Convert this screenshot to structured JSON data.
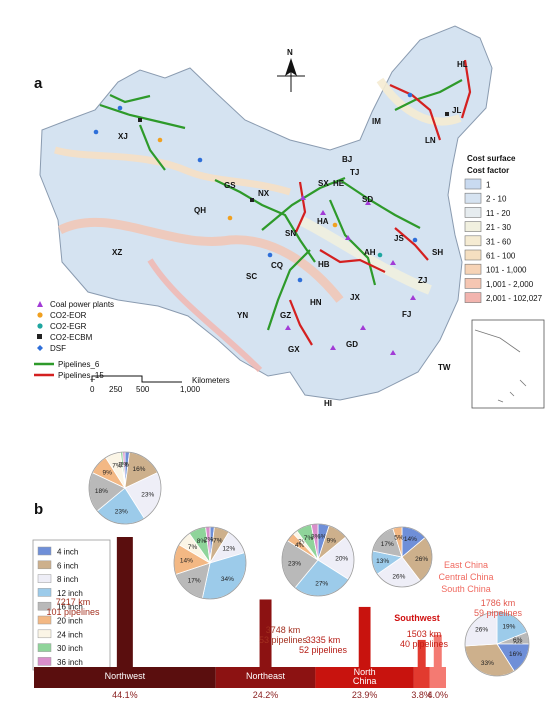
{
  "map_panel": {
    "panel_label": "a",
    "north_label": "N",
    "provinces": [
      "HL",
      "JL",
      "LN",
      "IM",
      "XJ",
      "GS",
      "QH",
      "XZ",
      "NX",
      "SX",
      "HE",
      "BJ",
      "TJ",
      "SD",
      "HA",
      "SN",
      "SC",
      "CQ",
      "HB",
      "AH",
      "JS",
      "SH",
      "ZJ",
      "HN",
      "JX",
      "FJ",
      "YN",
      "GZ",
      "GX",
      "GD",
      "TW",
      "HI"
    ],
    "point_legend": [
      {
        "label": "Coal power plants",
        "symbol": "triangle",
        "color": "#a23bd6"
      },
      {
        "label": "CO2-EOR",
        "symbol": "circle",
        "color": "#f0a020"
      },
      {
        "label": "CO2-EGR",
        "symbol": "circle",
        "color": "#1fa6a0"
      },
      {
        "label": "CO2-ECBM",
        "symbol": "square",
        "color": "#222222"
      },
      {
        "label": "DSF",
        "symbol": "diamond",
        "color": "#2e6fd9"
      }
    ],
    "line_legend": [
      {
        "label": "Pipelines_6",
        "color": "#2e9a2a"
      },
      {
        "label": "Pipelines_15",
        "color": "#d42020"
      }
    ],
    "scale": {
      "ticks": [
        "0",
        "250",
        "500",
        "1,000"
      ],
      "unit": "Kilometers"
    },
    "cost_legend": {
      "title1": "Cost surface",
      "title2": "Cost factor",
      "classes": [
        {
          "label": "1",
          "color": "#c9daf0"
        },
        {
          "label": "2 - 10",
          "color": "#d6e3f1"
        },
        {
          "label": "11 - 20",
          "color": "#e6ecef"
        },
        {
          "label": "21 - 30",
          "color": "#f1f0df"
        },
        {
          "label": "31 - 60",
          "color": "#f5ebd2"
        },
        {
          "label": "61 - 100",
          "color": "#f5dfc0"
        },
        {
          "label": "101 - 1,000",
          "color": "#f6d3b6"
        },
        {
          "label": "1,001 - 2,000",
          "color": "#f5c6b2"
        },
        {
          "label": "2,001 - 102,027",
          "color": "#f2b4ae"
        }
      ]
    }
  },
  "chart_panel": {
    "panel_label": "b",
    "size_legend": [
      {
        "label": "4 inch",
        "color": "#6f8fd8"
      },
      {
        "label": "6 inch",
        "color": "#cdb08c"
      },
      {
        "label": "8 inch",
        "color": "#eeeef7"
      },
      {
        "label": "12 inch",
        "color": "#9ccbea"
      },
      {
        "label": "16 inch",
        "color": "#b9b9b9"
      },
      {
        "label": "20 inch",
        "color": "#f3b884"
      },
      {
        "label": "24 inch",
        "color": "#fbf5e6"
      },
      {
        "label": "30 inch",
        "color": "#8fd49a"
      },
      {
        "label": "36 inch",
        "color": "#d98ecb"
      }
    ]
  },
  "chart_data": {
    "type": "bar",
    "title": "",
    "categories": [
      "Northwest",
      "Northeast",
      "North China",
      "Southwest",
      "East China / Central China / South China"
    ],
    "region_labels": [
      "Northwest",
      "Northeast",
      "North\nChina",
      "",
      ""
    ],
    "annotations": [
      {
        "length": "7217 km",
        "pipelines": "101 pipelines"
      },
      {
        "length": "3748 km",
        "pipelines": "53 pipelines"
      },
      {
        "length": "3335 km",
        "pipelines": "52 pipelines"
      },
      {
        "length": "1503 km",
        "pipelines": "40 pipelines",
        "region": "Southwest"
      },
      {
        "length": "1786 km",
        "pipelines": "59 pipelines",
        "region_lines": [
          "East China",
          "Central China",
          "South China"
        ]
      }
    ],
    "length_km": [
      7217,
      3748,
      3335,
      1503,
      1786
    ],
    "pipelines": [
      101,
      53,
      52,
      40,
      59
    ],
    "share_percent": [
      44.1,
      24.2,
      23.9,
      3.8,
      4.0
    ],
    "share_labels": [
      "44.1%",
      "24.2%",
      "23.9%",
      "3.8%",
      "4.0%"
    ],
    "bar_colors": [
      "#5a0e0e",
      "#8c1212",
      "#c8130e",
      "#e23a2f",
      "#f47a72"
    ],
    "pie_charts": [
      {
        "region": "Northwest",
        "slices": [
          {
            "size": "4 inch",
            "label": "2%",
            "value": 2
          },
          {
            "size": "6 inch",
            "label": "16%",
            "value": 16
          },
          {
            "size": "8 inch",
            "label": "23%",
            "value": 23
          },
          {
            "size": "12 inch",
            "label": "23%",
            "value": 23
          },
          {
            "size": "16 inch",
            "label": "18%",
            "value": 18
          },
          {
            "size": "20 inch",
            "label": "9%",
            "value": 9
          },
          {
            "size": "24 inch",
            "label": "7%",
            "value": 7
          },
          {
            "size": "30 inch",
            "label": "1%",
            "value": 1
          },
          {
            "size": "36 inch",
            "label": "1%",
            "value": 1
          }
        ]
      },
      {
        "region": "Northeast",
        "slices": [
          {
            "size": "4 inch",
            "label": "2%",
            "value": 2
          },
          {
            "size": "6 inch",
            "label": "7%",
            "value": 7
          },
          {
            "size": "8 inch",
            "label": "12%",
            "value": 12
          },
          {
            "size": "12 inch",
            "label": "34%",
            "value": 34
          },
          {
            "size": "16 inch",
            "label": "17%",
            "value": 17
          },
          {
            "size": "20 inch",
            "label": "14%",
            "value": 14
          },
          {
            "size": "24 inch",
            "label": "7%",
            "value": 7
          },
          {
            "size": "30 inch",
            "label": "8%",
            "value": 8
          },
          {
            "size": "36 inch",
            "label": "2%",
            "value": 2
          }
        ]
      },
      {
        "region": "North China",
        "slices": [
          {
            "size": "4 inch",
            "label": "5%",
            "value": 5
          },
          {
            "size": "6 inch",
            "label": "9%",
            "value": 9
          },
          {
            "size": "8 inch",
            "label": "20%",
            "value": 20
          },
          {
            "size": "12 inch",
            "label": "27%",
            "value": 27
          },
          {
            "size": "16 inch",
            "label": "23%",
            "value": 23
          },
          {
            "size": "20 inch",
            "label": "4%",
            "value": 4
          },
          {
            "size": "24 inch",
            "label": "2%",
            "value": 2
          },
          {
            "size": "30 inch",
            "label": "7%",
            "value": 7
          },
          {
            "size": "36 inch",
            "label": "3%",
            "value": 3
          }
        ]
      },
      {
        "region": "Southwest",
        "slices": [
          {
            "size": "4 inch",
            "label": "14%",
            "value": 14
          },
          {
            "size": "6 inch",
            "label": "26%",
            "value": 26
          },
          {
            "size": "8 inch",
            "label": "26%",
            "value": 26
          },
          {
            "size": "12 inch",
            "label": "13%",
            "value": 13
          },
          {
            "size": "16 inch",
            "label": "17%",
            "value": 17
          },
          {
            "size": "20 inch",
            "label": "5%",
            "value": 5
          }
        ]
      },
      {
        "region": "East China / Central China / South China",
        "slices": [
          {
            "size": "12 inch",
            "label": "19%",
            "value": 19
          },
          {
            "size": "16 inch",
            "label": "6%",
            "value": 6
          },
          {
            "size": "36 inch",
            "label": "0%",
            "value": 0
          },
          {
            "size": "4 inch",
            "label": "16%",
            "value": 16
          },
          {
            "size": "6 inch",
            "label": "33%",
            "value": 33
          },
          {
            "size": "8 inch",
            "label": "26%",
            "value": 26
          }
        ]
      }
    ]
  }
}
